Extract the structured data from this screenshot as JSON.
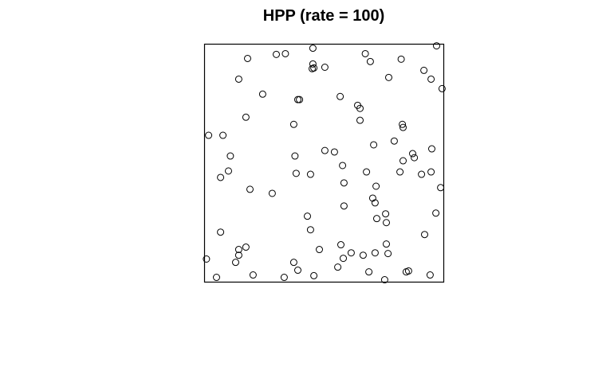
{
  "chart_data": {
    "type": "scatter",
    "title": "HPP (rate = 100)",
    "xlabel": "",
    "ylabel": "",
    "xlim": [
      0,
      1
    ],
    "ylim": [
      0,
      1
    ],
    "grid": false,
    "axes_ticks": false,
    "frame": true,
    "marker": "open-circle",
    "marker_color": "#000000",
    "points": [
      [
        0.97,
        0.993
      ],
      [
        0.18,
        0.94
      ],
      [
        0.3,
        0.957
      ],
      [
        0.338,
        0.96
      ],
      [
        0.453,
        0.917
      ],
      [
        0.672,
        0.96
      ],
      [
        0.693,
        0.927
      ],
      [
        0.822,
        0.937
      ],
      [
        0.917,
        0.89
      ],
      [
        0.947,
        0.853
      ],
      [
        0.993,
        0.813
      ],
      [
        0.143,
        0.853
      ],
      [
        0.453,
        0.983
      ],
      [
        0.45,
        0.897
      ],
      [
        0.457,
        0.9
      ],
      [
        0.503,
        0.903
      ],
      [
        0.77,
        0.86
      ],
      [
        0.243,
        0.79
      ],
      [
        0.39,
        0.767
      ],
      [
        0.397,
        0.767
      ],
      [
        0.567,
        0.78
      ],
      [
        0.64,
        0.743
      ],
      [
        0.65,
        0.73
      ],
      [
        0.65,
        0.68
      ],
      [
        0.173,
        0.693
      ],
      [
        0.373,
        0.663
      ],
      [
        0.827,
        0.663
      ],
      [
        0.83,
        0.65
      ],
      [
        0.017,
        0.617
      ],
      [
        0.077,
        0.617
      ],
      [
        0.793,
        0.593
      ],
      [
        0.707,
        0.577
      ],
      [
        0.95,
        0.56
      ],
      [
        0.503,
        0.553
      ],
      [
        0.543,
        0.547
      ],
      [
        0.87,
        0.54
      ],
      [
        0.877,
        0.523
      ],
      [
        0.108,
        0.53
      ],
      [
        0.378,
        0.53
      ],
      [
        0.83,
        0.51
      ],
      [
        0.577,
        0.49
      ],
      [
        0.1,
        0.467
      ],
      [
        0.067,
        0.44
      ],
      [
        0.383,
        0.457
      ],
      [
        0.443,
        0.453
      ],
      [
        0.677,
        0.463
      ],
      [
        0.817,
        0.463
      ],
      [
        0.907,
        0.453
      ],
      [
        0.947,
        0.463
      ],
      [
        0.583,
        0.417
      ],
      [
        0.19,
        0.39
      ],
      [
        0.283,
        0.373
      ],
      [
        0.717,
        0.403
      ],
      [
        0.987,
        0.397
      ],
      [
        0.703,
        0.353
      ],
      [
        0.713,
        0.333
      ],
      [
        0.583,
        0.32
      ],
      [
        0.43,
        0.277
      ],
      [
        0.72,
        0.267
      ],
      [
        0.757,
        0.287
      ],
      [
        0.967,
        0.29
      ],
      [
        0.76,
        0.25
      ],
      [
        0.443,
        0.22
      ],
      [
        0.067,
        0.21
      ],
      [
        0.92,
        0.2
      ],
      [
        0.57,
        0.157
      ],
      [
        0.76,
        0.16
      ],
      [
        0.173,
        0.147
      ],
      [
        0.143,
        0.137
      ],
      [
        0.48,
        0.137
      ],
      [
        0.143,
        0.113
      ],
      [
        0.613,
        0.123
      ],
      [
        0.713,
        0.123
      ],
      [
        0.767,
        0.12
      ],
      [
        0.58,
        0.1
      ],
      [
        0.663,
        0.113
      ],
      [
        0.008,
        0.097
      ],
      [
        0.13,
        0.083
      ],
      [
        0.373,
        0.083
      ],
      [
        0.557,
        0.063
      ],
      [
        0.39,
        0.05
      ],
      [
        0.687,
        0.043
      ],
      [
        0.843,
        0.043
      ],
      [
        0.853,
        0.047
      ],
      [
        0.05,
        0.02
      ],
      [
        0.203,
        0.03
      ],
      [
        0.333,
        0.02
      ],
      [
        0.457,
        0.027
      ],
      [
        0.753,
        0.01
      ],
      [
        0.943,
        0.03
      ]
    ]
  }
}
